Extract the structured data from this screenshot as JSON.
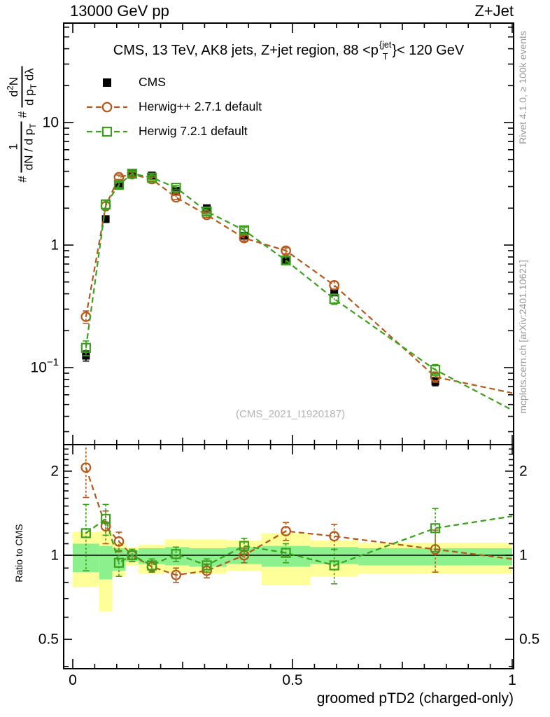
{
  "header": {
    "left": "13000 GeV pp",
    "right": "Z+Jet"
  },
  "panel_title": {
    "prefix": "CMS, 13 TeV, AK8 jets, Z+jet region, 88 <p",
    "sup": "{jet",
    "sub": "T",
    "suffix": "}< 120 GeV"
  },
  "legend": {
    "items": [
      {
        "label": "CMS",
        "marker": "filled-square",
        "color": "#000000"
      },
      {
        "label": "Herwig++ 2.7.1 default",
        "marker": "open-circle",
        "color": "#b4591b"
      },
      {
        "label": "Herwig 7.2.1 default",
        "marker": "open-square",
        "color": "#3c9f1d"
      }
    ]
  },
  "ylabel": {
    "hash1": "#",
    "num1": "1",
    "den1_pre": "dN / d p",
    "den1_sub": "T",
    "hash2": "#",
    "num2_pre": "d",
    "num2_sup": "2",
    "num2_post": "N",
    "den2_pre": "d p",
    "den2_sub": "T",
    "den2_post": " dλ"
  },
  "ratio_axis_label": "Ratio to CMS",
  "xlabel": "groomed pTD2 (charged-only)",
  "watermark": "(CMS_2021_I1920187)",
  "side_notes": {
    "top": "Rivet 4.1.0, ≥ 100k events",
    "bottom": "mcplots.cern.ch [arXiv:2401.10621]"
  },
  "colors": {
    "cms": "#000000",
    "herwigpp": "#b4591b",
    "herwig7": "#3c9f1d",
    "band_yellow": "#ffff99",
    "band_green": "#8cf08c",
    "side_text": "#999999",
    "watermark": "#b3b3b3"
  },
  "axis": {
    "x": {
      "range": [
        0,
        1
      ],
      "major": [
        {
          "v": 0,
          "label": "0"
        },
        {
          "v": 0.5,
          "label": "0.5"
        },
        {
          "v": 1,
          "label": "1"
        }
      ],
      "medium": [
        0.25,
        0.75
      ],
      "minor_step": 0.05
    },
    "y_main": {
      "scale": "log",
      "labels": [
        {
          "v": 10,
          "base": "10",
          "exp": ""
        },
        {
          "v": 1,
          "base": "1",
          "exp": ""
        },
        {
          "v": 0.1,
          "base": "10",
          "exp": "−1"
        }
      ]
    },
    "y_ratio": {
      "scale": "log",
      "labels": [
        {
          "v": 2,
          "label": "2"
        },
        {
          "v": 1,
          "label": "1"
        },
        {
          "v": 0.5,
          "label": "0.5"
        }
      ]
    }
  },
  "chart_data": {
    "type": "line",
    "title": "CMS, 13 TeV, AK8 jets, Z+jet region, 88 <pT{jet}< 120 GeV",
    "xlabel": "groomed pTD2 (charged-only)",
    "ylabel": "# 1/(dN/dpT) # d2N/(dpT dlambda)",
    "x": [
      0.03,
      0.075,
      0.105,
      0.135,
      0.18,
      0.235,
      0.305,
      0.39,
      0.485,
      0.595,
      0.825
    ],
    "xlim": [
      0,
      1
    ],
    "ylim_main": [
      0.023,
      65
    ],
    "ylim_ratio": [
      0.39,
      2.5
    ],
    "legend_position": "top-left",
    "grid": false,
    "series": [
      {
        "name": "CMS",
        "marker": "filled-square",
        "line": "none",
        "color": "#000000",
        "values": [
          0.125,
          1.63,
          3.05,
          3.85,
          3.7,
          2.78,
          2.0,
          1.19,
          0.74,
          0.41,
          0.077
        ],
        "yerr": [
          0.012,
          0.1,
          0.15,
          0.15,
          0.14,
          0.11,
          0.08,
          0.05,
          0.035,
          0.022,
          0.006
        ]
      },
      {
        "name": "Herwig++ 2.7.1 default",
        "marker": "open-circle",
        "line": "dashed",
        "color": "#b4591b",
        "values": [
          0.26,
          2.08,
          3.58,
          3.78,
          3.45,
          2.45,
          1.76,
          1.14,
          0.9,
          0.47,
          0.084
        ],
        "yerr": [
          0.03,
          0.15,
          0.15,
          0.15,
          0.13,
          0.1,
          0.08,
          0.06,
          0.05,
          0.035,
          0.008
        ],
        "extend": {
          "x": 1.0,
          "y": 0.062
        }
      },
      {
        "name": "Herwig 7.2.1 default",
        "marker": "open-square",
        "line": "dashed",
        "color": "#3c9f1d",
        "values": [
          0.145,
          2.15,
          3.1,
          3.83,
          3.55,
          2.94,
          1.88,
          1.32,
          0.75,
          0.363,
          0.096
        ],
        "yerr": [
          0.02,
          0.18,
          0.16,
          0.16,
          0.14,
          0.12,
          0.09,
          0.07,
          0.05,
          0.035,
          0.01
        ],
        "extend": {
          "x": 1.0,
          "y": 0.045
        }
      }
    ],
    "ratio": {
      "ylabel": "Ratio to CMS",
      "reference": 1.0,
      "series": [
        {
          "name": "Herwig++ 2.7.1 default",
          "marker": "open-circle",
          "line": "dashed",
          "color": "#b4591b",
          "values": [
            2.06,
            1.27,
            1.12,
            1.0,
            0.91,
            0.85,
            0.88,
            1.0,
            1.22,
            1.17,
            1.05
          ],
          "yerr": [
            0.45,
            0.17,
            0.09,
            0.05,
            0.04,
            0.05,
            0.05,
            0.06,
            0.09,
            0.12,
            0.18
          ],
          "extend": {
            "x": 1.0,
            "y": 0.97
          }
        },
        {
          "name": "Herwig 7.2.1 default",
          "marker": "open-square",
          "line": "dashed",
          "color": "#3c9f1d",
          "values": [
            1.2,
            1.35,
            0.94,
            1.0,
            0.92,
            1.01,
            0.92,
            1.08,
            1.02,
            0.92,
            1.25
          ],
          "yerr": [
            0.32,
            0.17,
            0.1,
            0.05,
            0.05,
            0.06,
            0.05,
            0.07,
            0.08,
            0.13,
            0.22
          ],
          "extend": {
            "x": 1.0,
            "y": 1.38
          }
        }
      ],
      "bands": {
        "bin_edges": [
          0,
          0.06,
          0.09,
          0.12,
          0.15,
          0.21,
          0.265,
          0.35,
          0.43,
          0.54,
          0.65,
          1.0
        ],
        "yellow": [
          [
            0.77,
            1.21
          ],
          [
            0.63,
            1.22
          ],
          [
            0.84,
            1.11
          ],
          [
            0.92,
            1.07
          ],
          [
            0.86,
            1.09
          ],
          [
            0.87,
            1.14
          ],
          [
            0.86,
            1.14
          ],
          [
            0.88,
            1.13
          ],
          [
            0.78,
            1.2
          ],
          [
            0.84,
            1.13
          ],
          [
            0.86,
            1.11
          ]
        ],
        "green": [
          [
            0.87,
            1.1
          ],
          [
            0.82,
            1.08
          ],
          [
            0.88,
            1.06
          ],
          [
            0.95,
            1.04
          ],
          [
            0.93,
            1.06
          ],
          [
            0.92,
            1.07
          ],
          [
            0.91,
            1.06
          ],
          [
            0.93,
            1.07
          ],
          [
            0.91,
            1.08
          ],
          [
            0.93,
            1.07
          ],
          [
            0.92,
            1.06
          ]
        ]
      }
    }
  }
}
